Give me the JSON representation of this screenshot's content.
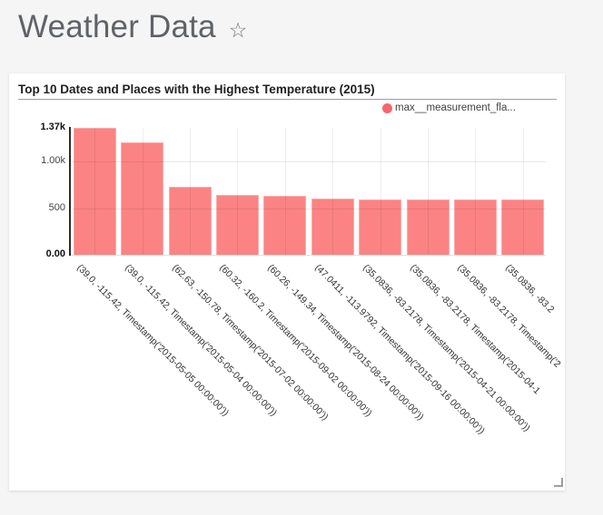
{
  "page": {
    "title": "Weather Data",
    "star_icon": "☆",
    "background_color": "#f5f5f5"
  },
  "card": {
    "title": "Top 10 Dates and Places with the Highest Temperature (2015)"
  },
  "chart_data": {
    "type": "bar",
    "title": "Top 10 Dates and Places with the Highest Temperature (2015)",
    "legend": [
      {
        "label": "max__measurement_fla...",
        "color": "#f8646c"
      }
    ],
    "legend_position": "top-right",
    "bar_color": "#fb8383",
    "bar_border_color": "#fdabab",
    "categories": [
      "(39.0, -115.42, Timestamp('2015-05-05 00:00:00'))",
      "(39.0, -115.42, Timestamp('2015-05-04 00:00:00'))",
      "(62.63, -150.78, Timestamp('2015-07-02 00:00:00'))",
      "(60.32, -160.2, Timestamp('2015-09-02 00:00:00'))",
      "(60.26, -149.34, Timestamp('2015-08-24 00:00:00'))",
      "(47.0411, -113.9792, Timestamp('2015-09-16 00:00:00'))",
      "(35.0836, -83.2178, Timestamp('2015-04-21 00:00:00'))",
      "(35.0836, -83.2178, Timestamp('2015-04-1",
      "(35.0836, -83.2178, Timestamp('2",
      "(35.0836, -83.2"
    ],
    "values": [
      1370,
      1210,
      735,
      645,
      635,
      600,
      590,
      590,
      590,
      590
    ],
    "ylim": [
      0,
      1370
    ],
    "yticks": [
      {
        "value": 0,
        "label": "0.00",
        "bold": true
      },
      {
        "value": 500,
        "label": "500",
        "bold": false
      },
      {
        "value": 1000,
        "label": "1.00k",
        "bold": false
      },
      {
        "value": 1370,
        "label": "1.37k",
        "bold": true
      }
    ],
    "grid": true,
    "xtick_rotation_deg": 45,
    "gridline_color": "rgba(0,0,0,0.085)",
    "axis_color": "#2b2b2b"
  }
}
